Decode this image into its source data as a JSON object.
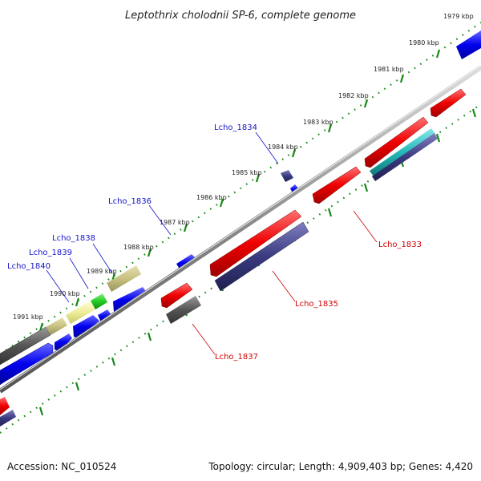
{
  "title": "Leptothrix cholodnii SP-6, complete genome",
  "footer": {
    "accession": "Accession: NC_010524",
    "topology": "Topology: circular; Length: 4,909,403 bp; Genes: 4,420"
  },
  "ruler_labels": [
    "1979 kbp",
    "1980 kbp",
    "1981 kbp",
    "1982 kbp",
    "1983 kbp",
    "1984 kbp",
    "1985 kbp",
    "1986 kbp",
    "1987 kbp",
    "1988 kbp",
    "1989 kbp",
    "1990 kbp",
    "1991 kbp"
  ],
  "gene_labels": {
    "lcho_1833": "Lcho_1833",
    "lcho_1834": "Lcho_1834",
    "lcho_1835": "Lcho_1835",
    "lcho_1836": "Lcho_1836",
    "lcho_1837": "Lcho_1837",
    "lcho_1838": "Lcho_1838",
    "lcho_1839": "Lcho_1839",
    "lcho_1840": "Lcho_1840"
  },
  "colors": {
    "forward_cds": "#0000ee",
    "reverse_cds": "#ee0000",
    "dark_feature": "#3a3a80",
    "gray_feature": "#555555",
    "khaki_feature": "#c8c080",
    "pale_feature": "#eeee99",
    "green_feature": "#22cc22",
    "teal_feature": "#22b8b8",
    "backbone": "#888888",
    "ruler": "#1a8a1a"
  }
}
